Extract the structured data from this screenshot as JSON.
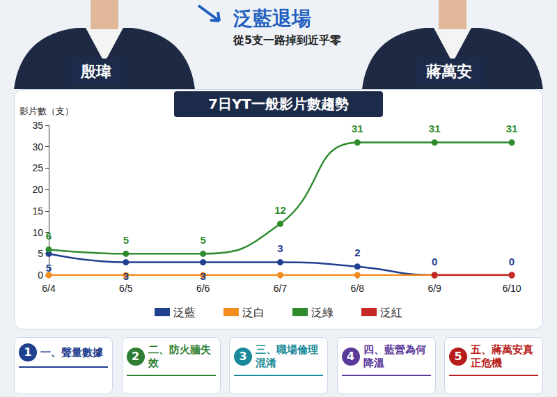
{
  "header": {
    "headline": "泛藍退場",
    "subheadline": "從5支一路掉到近乎零",
    "left_name": "殷瑋",
    "right_name": "蔣萬安"
  },
  "chart_data": {
    "type": "line",
    "title": "7日YT一般影片數趨勢",
    "y_label": "影片數（支）",
    "categories": [
      "6/4",
      "6/5",
      "6/6",
      "6/7",
      "6/8",
      "6/9",
      "6/10"
    ],
    "series": [
      {
        "name": "泛藍",
        "color": "#1f3f8f",
        "values": [
          5,
          3,
          3,
          3,
          2,
          0,
          0
        ],
        "marker": "circle",
        "data_labels": true
      },
      {
        "name": "泛白",
        "color": "#f28c1c",
        "values": [
          0,
          0,
          0,
          0,
          0,
          0,
          0
        ],
        "marker": "circle",
        "data_labels": false
      },
      {
        "name": "泛綠",
        "color": "#2e8b2e",
        "values": [
          6,
          5,
          5,
          12,
          31,
          31,
          31
        ],
        "marker": "circle",
        "data_labels": true
      },
      {
        "name": "泛紅",
        "color": "#c62828",
        "values": [
          null,
          null,
          null,
          null,
          null,
          0,
          0
        ],
        "marker": "circle",
        "data_labels": false
      }
    ],
    "ylim": [
      0,
      35
    ],
    "yticks": [
      0,
      5,
      10,
      15,
      20,
      25,
      30,
      35
    ],
    "grid": false,
    "legend": "bottom"
  },
  "cards": [
    {
      "number": "1",
      "title": "一、聲量數據",
      "color": "#1f3f8f"
    },
    {
      "number": "2",
      "title": "二、防火牆失效",
      "color": "#2e7d32"
    },
    {
      "number": "3",
      "title": "三、職場倫理混淆",
      "color": "#1a8a9a"
    },
    {
      "number": "4",
      "title": "四、藍營為何降溫",
      "color": "#5b3a9a"
    },
    {
      "number": "5",
      "title": "五、蔣萬安真正危機",
      "color": "#b71c1c"
    }
  ]
}
